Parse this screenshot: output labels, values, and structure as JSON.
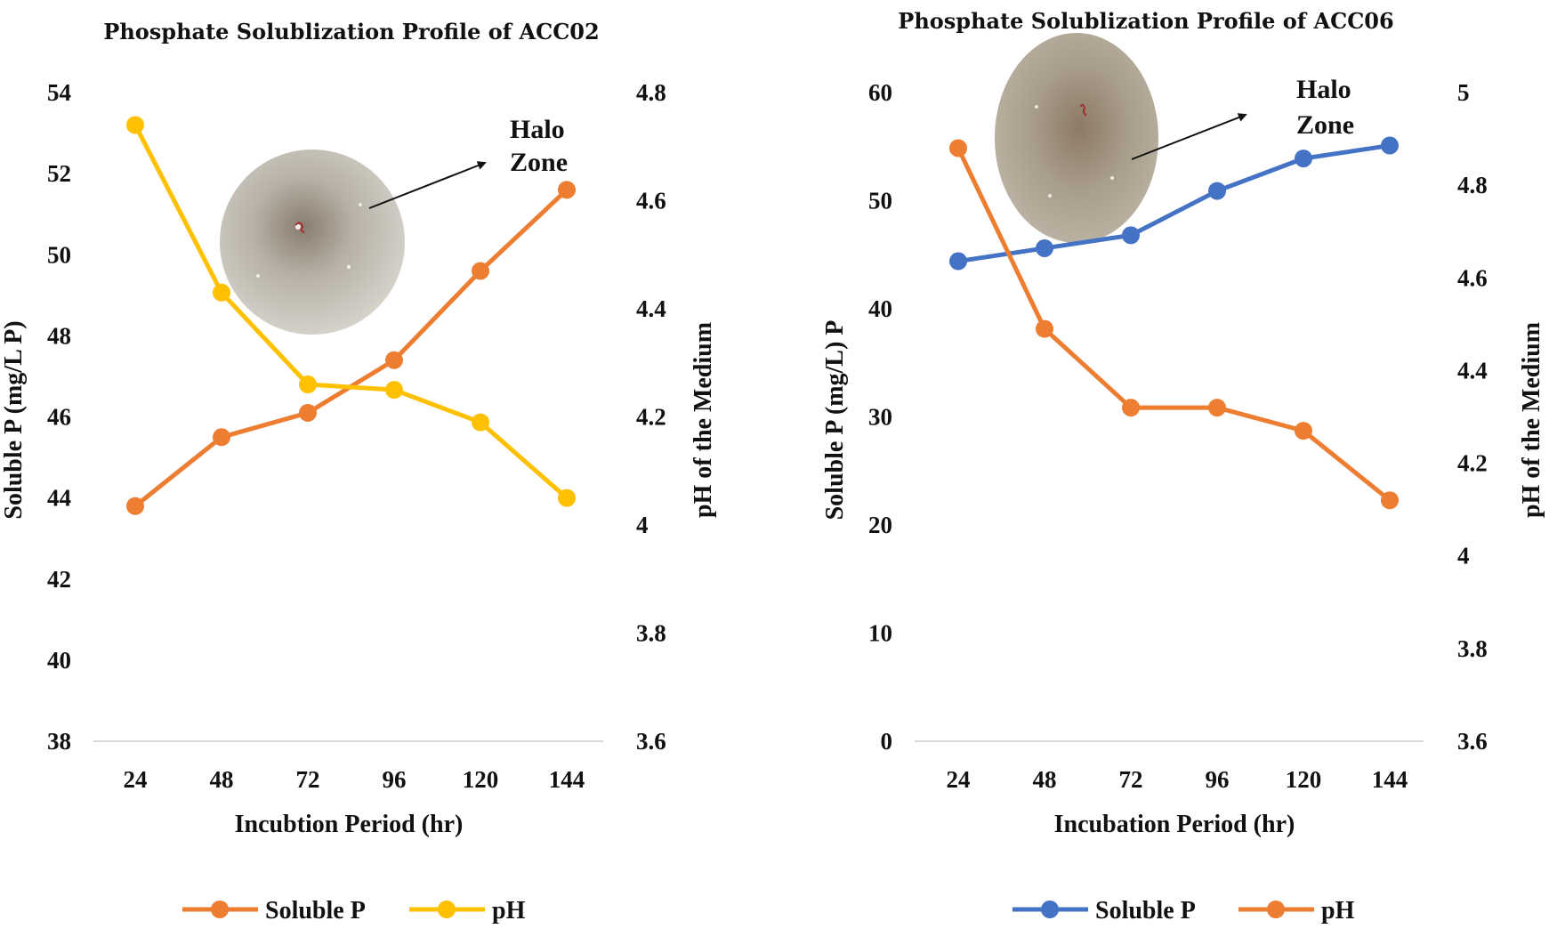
{
  "chart_data": [
    {
      "type": "line",
      "title": "Phosphate Solublization Profile of ACC02",
      "xlabel": "Incubtion Period (hr)",
      "ylabel": "Soluble P (mg/L P)",
      "y2label": "pH of the Medium",
      "categories": [
        "24",
        "48",
        "72",
        "96",
        "120",
        "144"
      ],
      "ylim": [
        38,
        54
      ],
      "yticks": [
        "38",
        "40",
        "42",
        "44",
        "46",
        "48",
        "50",
        "52",
        "54"
      ],
      "y2lim": [
        3.6,
        4.8
      ],
      "y2ticks": [
        "3.6",
        "3.8",
        "4",
        "4.2",
        "4.4",
        "4.6",
        "4.8"
      ],
      "series": [
        {
          "name": "Soluble P",
          "axis": "left",
          "color": "#ED7D31",
          "values": [
            43.8,
            45.5,
            46.1,
            47.4,
            49.6,
            51.6
          ]
        },
        {
          "name": "pH",
          "axis": "right",
          "color": "#FFC000",
          "values": [
            4.74,
            4.43,
            4.26,
            4.25,
            4.19,
            4.05
          ]
        }
      ],
      "annotation": [
        "Halo",
        "Zone"
      ],
      "legend": "bottom"
    },
    {
      "type": "line",
      "title": "Phosphate Solublization Profile of ACC06",
      "xlabel": "Incubation Period (hr)",
      "ylabel": "Soluble P (mg/L) P",
      "y2label": "pH of the Medium",
      "categories": [
        "24",
        "48",
        "72",
        "96",
        "120",
        "144"
      ],
      "ylim": [
        0,
        60
      ],
      "yticks": [
        "0",
        "10",
        "20",
        "30",
        "40",
        "50",
        "60"
      ],
      "y2lim": [
        3.6,
        5
      ],
      "y2ticks": [
        "3.6",
        "3.8",
        "4",
        "4.2",
        "4.4",
        "4.6",
        "4.8",
        "5"
      ],
      "series": [
        {
          "name": "Soluble P",
          "axis": "left",
          "color": "#4472C4",
          "values": [
            44.4,
            45.6,
            46.8,
            50.9,
            53.9,
            55.1
          ]
        },
        {
          "name": "pH",
          "axis": "right",
          "color": "#ED7D31",
          "values": [
            4.88,
            4.49,
            4.32,
            4.32,
            4.27,
            4.12
          ]
        }
      ],
      "annotation": [
        "Halo",
        "Zone"
      ],
      "legend": "bottom"
    }
  ]
}
